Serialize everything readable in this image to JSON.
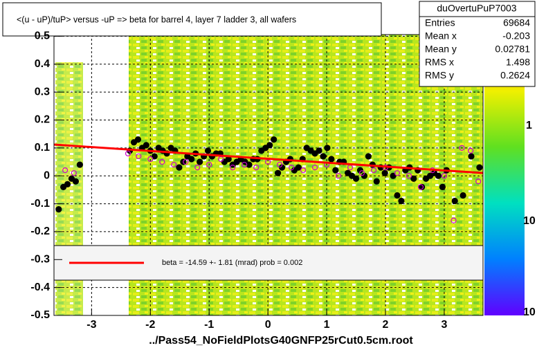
{
  "chart_data": {
    "type": "scatter",
    "title": "<(u - uP)/tuP> versus  -uP => beta for barrel 4, layer 7 ladder 3, all wafers",
    "x_label": "../Pass54_NoFieldPlotsG40GNFP25rCut0.5cm.root",
    "xlim": [
      -3.64,
      3.66
    ],
    "ylim": [
      -0.5,
      0.506
    ],
    "xticks": [
      -3,
      -2,
      -1,
      0,
      1,
      2,
      3
    ],
    "yticks": [
      -0.5,
      -0.4,
      -0.3,
      -0.2,
      -0.1,
      0,
      0.1,
      0.2,
      0.3,
      0.4,
      0.5
    ],
    "grid": true,
    "stats": {
      "name": "duOvertuPuP7003",
      "rows": [
        [
          "Entries",
          "69684"
        ],
        [
          "Mean x",
          "-0.203"
        ],
        [
          "Mean y",
          "0.02781"
        ],
        [
          "RMS x",
          "1.498"
        ],
        [
          "RMS y",
          "0.2624"
        ]
      ]
    },
    "palette_labels": [
      "1",
      "10",
      "10"
    ],
    "series": [
      {
        "color": "#000000",
        "marker": "filled",
        "x": [
          -3.56,
          -3.48,
          -3.41,
          -3.34,
          -3.27,
          -3.2,
          -2.35,
          -2.28,
          -2.21,
          -2.14,
          -2.07,
          -2.0,
          -1.93,
          -1.86,
          -1.79,
          -1.72,
          -1.65,
          -1.58,
          -1.51,
          -1.44,
          -1.37,
          -1.3,
          -1.23,
          -1.16,
          -1.09,
          -1.02,
          -0.95,
          -0.88,
          -0.81,
          -0.74,
          -0.67,
          -0.6,
          -0.53,
          -0.46,
          -0.39,
          -0.32,
          -0.25,
          -0.18,
          -0.11,
          -0.04,
          0.03,
          0.1,
          0.17,
          0.24,
          0.31,
          0.38,
          0.45,
          0.52,
          0.59,
          0.66,
          0.73,
          0.8,
          0.87,
          0.94,
          1.01,
          1.08,
          1.15,
          1.22,
          1.29,
          1.36,
          1.43,
          1.5,
          1.57,
          1.64,
          1.71,
          1.78,
          1.85,
          1.92,
          1.99,
          2.06,
          2.13,
          2.2,
          2.27,
          2.34,
          2.41,
          2.48,
          2.55,
          2.62,
          2.69,
          2.76,
          2.83,
          2.9,
          2.97,
          3.04,
          3.18,
          3.32,
          3.46,
          3.6
        ],
        "values": [
          -0.12,
          -0.04,
          -0.03,
          -0.01,
          -0.02,
          0.04,
          0.09,
          0.12,
          0.13,
          0.1,
          0.11,
          0.09,
          0.07,
          0.1,
          0.09,
          0.08,
          0.1,
          0.09,
          0.03,
          0.05,
          0.07,
          0.06,
          0.08,
          0.05,
          0.07,
          0.09,
          0.07,
          0.08,
          0.08,
          0.05,
          0.06,
          0.04,
          0.05,
          0.06,
          0.05,
          0.04,
          0.06,
          0.06,
          0.09,
          0.1,
          0.11,
          0.13,
          0.01,
          0.03,
          0.05,
          0.06,
          0.02,
          0.03,
          0.06,
          0.1,
          0.09,
          0.08,
          0.09,
          0.07,
          0.1,
          0.06,
          0.02,
          0.05,
          0.05,
          0.01,
          0.0,
          -0.01,
          0.02,
          0.0,
          0.07,
          0.04,
          -0.02,
          0.03,
          0.01,
          0.03,
          0.0,
          -0.07,
          -0.09,
          0.02,
          0.03,
          -0.01,
          0.02,
          -0.04,
          -0.01,
          0.0,
          0.01,
          0.0,
          -0.04,
          0.02,
          -0.09,
          -0.07,
          0.07,
          0.03
        ]
      },
      {
        "color": "#cc00cc",
        "marker": "open",
        "x": [
          -3.45,
          -3.3,
          -2.38,
          -2.2,
          -2.0,
          -1.8,
          -1.6,
          -1.4,
          -1.2,
          -1.0,
          -0.8,
          -0.6,
          -0.4,
          -0.2,
          0.0,
          0.2,
          0.4,
          0.6,
          0.8,
          1.0,
          1.2,
          1.4,
          1.6,
          1.8,
          2.0,
          2.2,
          2.4,
          2.6,
          2.8,
          3.0,
          3.16,
          3.3,
          3.45,
          3.58
        ],
        "values": [
          0.02,
          0.01,
          0.08,
          0.07,
          0.06,
          0.05,
          0.04,
          0.05,
          0.03,
          0.04,
          0.06,
          0.03,
          0.04,
          0.03,
          0.05,
          0.04,
          0.03,
          0.02,
          0.03,
          0.04,
          0.0,
          0.03,
          0.01,
          0.02,
          0.03,
          0.01,
          0.0,
          -0.04,
          0.02,
          0.0,
          -0.16,
          0.1,
          0.09,
          -0.02
        ]
      }
    ],
    "fit": {
      "color": "#ff0000",
      "x": [
        -3.64,
        3.66
      ],
      "values": [
        0.112,
        0.01
      ],
      "label": "beta =  -14.59 +-  1.81 (mrad) prob = 0.002"
    }
  }
}
